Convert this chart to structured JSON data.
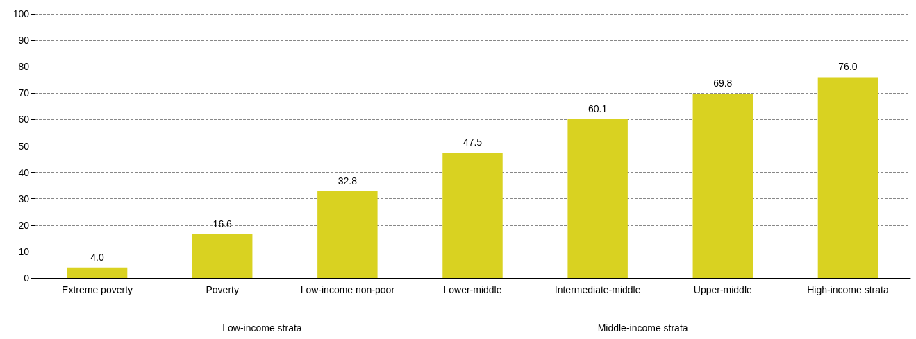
{
  "chart_data": {
    "type": "bar",
    "categories": [
      "Extreme poverty",
      "Poverty",
      "Low-income non-poor",
      "Lower-middle",
      "Intermediate-middle",
      "Upper-middle",
      "High-income strata"
    ],
    "values": [
      4.0,
      16.6,
      32.8,
      47.5,
      60.1,
      69.8,
      76.0
    ],
    "color": "#d9d221",
    "ylim": [
      0,
      100
    ],
    "yticks": [
      0,
      10,
      20,
      30,
      40,
      50,
      60,
      70,
      80,
      90,
      100
    ],
    "grid": "y",
    "value_labels": [
      "4.0",
      "16.6",
      "32.8",
      "47.5",
      "60.1",
      "69.8",
      "76.0"
    ],
    "annotations": [
      "Low-income strata",
      "Middle-income strata"
    ]
  }
}
